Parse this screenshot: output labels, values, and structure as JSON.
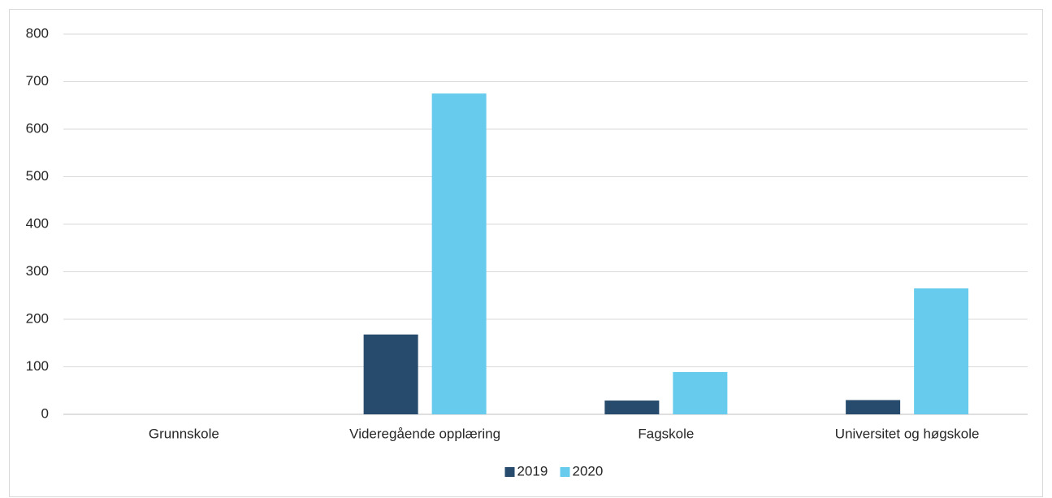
{
  "chart_data": {
    "type": "bar",
    "categories": [
      "Grunnskole",
      "Videregående opplæring",
      "Fagskole",
      "Universitet og høgskole"
    ],
    "series": [
      {
        "name": "2019",
        "color": "#264b6c",
        "values": [
          0,
          168,
          29,
          30
        ]
      },
      {
        "name": "2020",
        "color": "#66cbec",
        "values": [
          0,
          675,
          89,
          265
        ]
      }
    ],
    "ylim": [
      0,
      800
    ],
    "yticks": [
      0,
      100,
      200,
      300,
      400,
      500,
      600,
      700,
      800
    ],
    "grid": true,
    "legend": "bottom"
  }
}
